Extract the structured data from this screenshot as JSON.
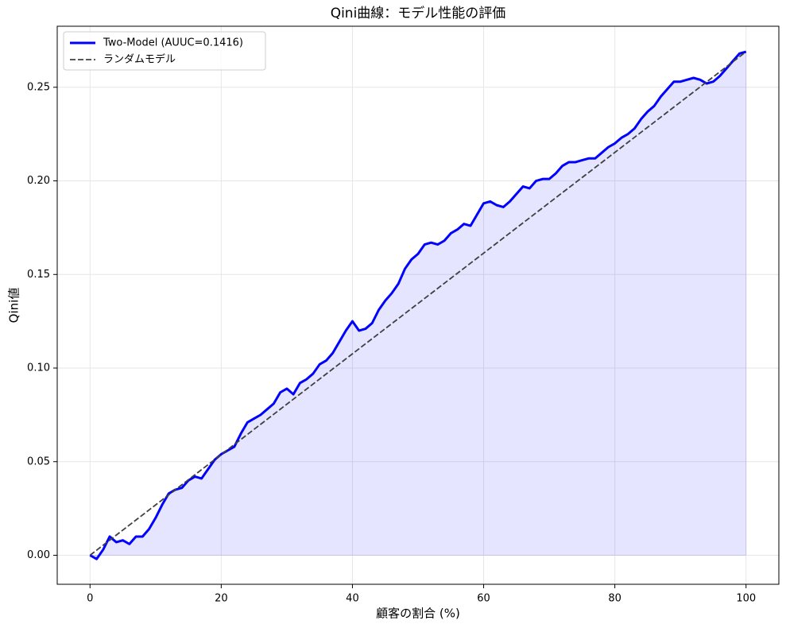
{
  "chart_data": {
    "type": "line",
    "title": "Qini曲線：モデル性能の評価",
    "xlabel": "顧客の割合 (%)",
    "ylabel": "Qini値",
    "xlim": [
      -5,
      105
    ],
    "ylim": [
      -0.0155,
      0.2826
    ],
    "xticks": [
      0,
      20,
      40,
      60,
      80,
      100
    ],
    "yticks": [
      {
        "value": 0,
        "label": "0.00"
      },
      {
        "value": 0.05,
        "label": "0.05"
      },
      {
        "value": 0.1,
        "label": "0.10"
      },
      {
        "value": 0.15,
        "label": "0.15"
      },
      {
        "value": 0.2,
        "label": "0.20"
      },
      {
        "value": 0.25,
        "label": "0.25"
      }
    ],
    "grid": true,
    "legend": "upper left",
    "series": [
      {
        "name": "Two-Model (AUUC=0.1416)",
        "color": "#0000ff",
        "linestyle": "solid",
        "fill": true,
        "x": [
          0,
          1,
          2,
          3,
          4,
          5,
          6,
          7,
          8,
          9,
          10,
          11,
          12,
          13,
          14,
          15,
          16,
          17,
          18,
          19,
          20,
          21,
          22,
          23,
          24,
          25,
          26,
          27,
          28,
          29,
          30,
          31,
          32,
          33,
          34,
          35,
          36,
          37,
          38,
          39,
          40,
          41,
          42,
          43,
          44,
          45,
          46,
          47,
          48,
          49,
          50,
          51,
          52,
          53,
          54,
          55,
          56,
          57,
          58,
          59,
          60,
          61,
          62,
          63,
          64,
          65,
          66,
          67,
          68,
          69,
          70,
          71,
          72,
          73,
          74,
          75,
          76,
          77,
          78,
          79,
          80,
          81,
          82,
          83,
          84,
          85,
          86,
          87,
          88,
          89,
          90,
          91,
          92,
          93,
          94,
          95,
          96,
          97,
          98,
          99,
          100
        ],
        "values": [
          0,
          -0.002,
          0.003,
          0.01,
          0.007,
          0.008,
          0.006,
          0.01,
          0.01,
          0.014,
          0.02,
          0.027,
          0.033,
          0.035,
          0.036,
          0.04,
          0.042,
          0.041,
          0.046,
          0.051,
          0.054,
          0.056,
          0.058,
          0.065,
          0.071,
          0.073,
          0.075,
          0.078,
          0.081,
          0.087,
          0.089,
          0.086,
          0.092,
          0.094,
          0.097,
          0.102,
          0.104,
          0.108,
          0.114,
          0.12,
          0.125,
          0.12,
          0.121,
          0.124,
          0.131,
          0.136,
          0.14,
          0.145,
          0.153,
          0.158,
          0.161,
          0.166,
          0.167,
          0.166,
          0.168,
          0.172,
          0.174,
          0.177,
          0.176,
          0.182,
          0.188,
          0.189,
          0.187,
          0.186,
          0.189,
          0.193,
          0.197,
          0.196,
          0.2,
          0.201,
          0.201,
          0.204,
          0.208,
          0.21,
          0.21,
          0.211,
          0.212,
          0.212,
          0.215,
          0.218,
          0.22,
          0.223,
          0.225,
          0.228,
          0.233,
          0.237,
          0.24,
          0.245,
          0.249,
          0.253,
          0.253,
          0.254,
          0.255,
          0.254,
          0.252,
          0.253,
          0.256,
          0.26,
          0.264,
          0.268,
          0.269
        ]
      },
      {
        "name": "ランダムモデル",
        "color": "#404040",
        "linestyle": "dashed",
        "fill": false,
        "x": [
          0,
          100
        ],
        "values": [
          0,
          0.269
        ]
      }
    ]
  }
}
